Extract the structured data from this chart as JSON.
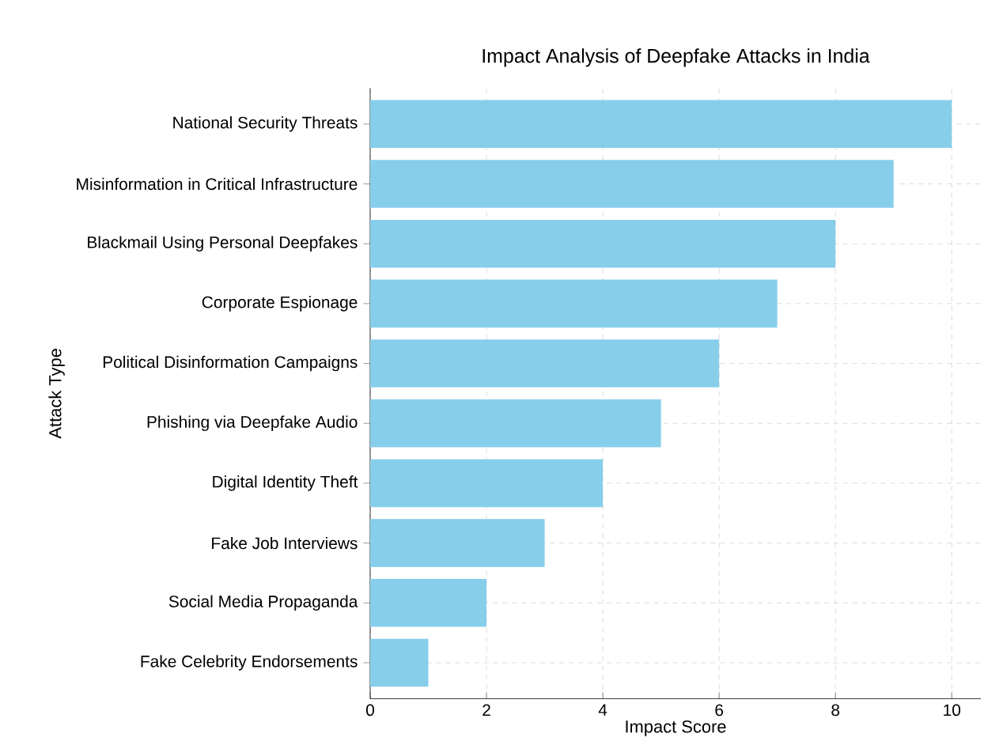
{
  "chart_data": {
    "type": "bar",
    "orientation": "horizontal",
    "title": "Impact Analysis of Deepfake Attacks in India",
    "xlabel": "Impact Score",
    "ylabel": "Attack Type",
    "categories": [
      "National Security Threats",
      "Misinformation in Critical Infrastructure",
      "Blackmail Using Personal Deepfakes",
      "Corporate Espionage",
      "Political Disinformation Campaigns",
      "Phishing via Deepfake Audio",
      "Digital Identity Theft",
      "Fake Job Interviews",
      "Social Media Propaganda",
      "Fake Celebrity Endorsements"
    ],
    "values": [
      10,
      9,
      8,
      7,
      6,
      5,
      4,
      3,
      2,
      1
    ],
    "color": "#87ceeb",
    "xlim": [
      0,
      10.5
    ],
    "xticks": [
      0,
      2,
      4,
      6,
      8,
      10
    ],
    "grid": true
  }
}
